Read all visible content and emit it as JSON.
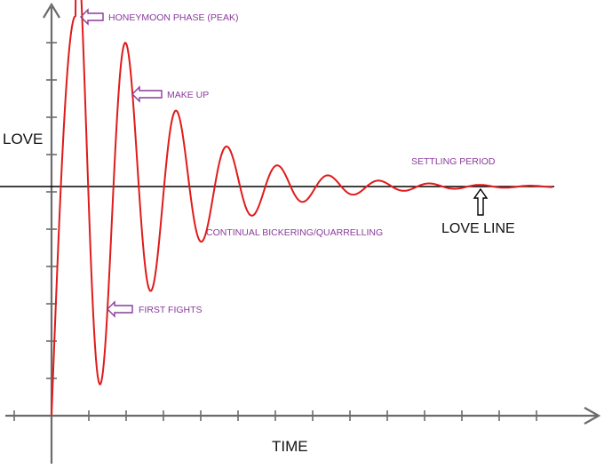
{
  "colors": {
    "curve": "#e01b1b",
    "axis": "#6b6b6b",
    "love_line": "#000000",
    "annotation_text": "#8a3a9c",
    "annotation_arrow": "#8a3a9c",
    "love_line_arrow": "#000000"
  },
  "labels": {
    "y_axis": "LOVE",
    "x_axis": "TIME",
    "love_line": "LOVE LINE"
  },
  "annotations": {
    "honeymoon": "HONEYMOON PHASE (PEAK)",
    "make_up": "MAKE UP",
    "first_fights": "FIRST FIGHTS",
    "bickering": "CONTINUAL BICKERING/QUARRELLING",
    "settling": "SETTLING PERIOD"
  },
  "icons": {
    "annotation_arrow": "left-hollow-arrow-icon",
    "love_line_arrow": "up-hollow-arrow-icon"
  }
}
